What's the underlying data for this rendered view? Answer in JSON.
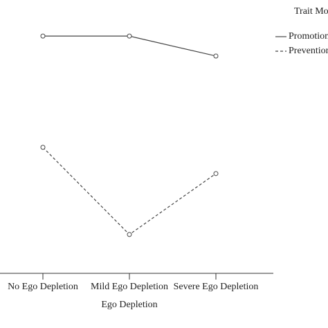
{
  "chart_data": {
    "type": "line",
    "x_label": "Ego Depletion",
    "categories": [
      "No Ego Depletion",
      "Mild Ego Depletion",
      "Severe Ego Depletion"
    ],
    "series": [
      {
        "name": "Promotion",
        "color": "#444444",
        "dash": "solid",
        "values": [
          86.8,
          86.8,
          79.5
        ]
      },
      {
        "name": "Prevention",
        "color": "#444444",
        "dash": "dashed",
        "values": [
          46.1,
          14.2,
          36.5
        ]
      }
    ],
    "ylim": [
      0,
      100
    ],
    "legend_title": "Trait Mo",
    "legend": "top-right"
  }
}
